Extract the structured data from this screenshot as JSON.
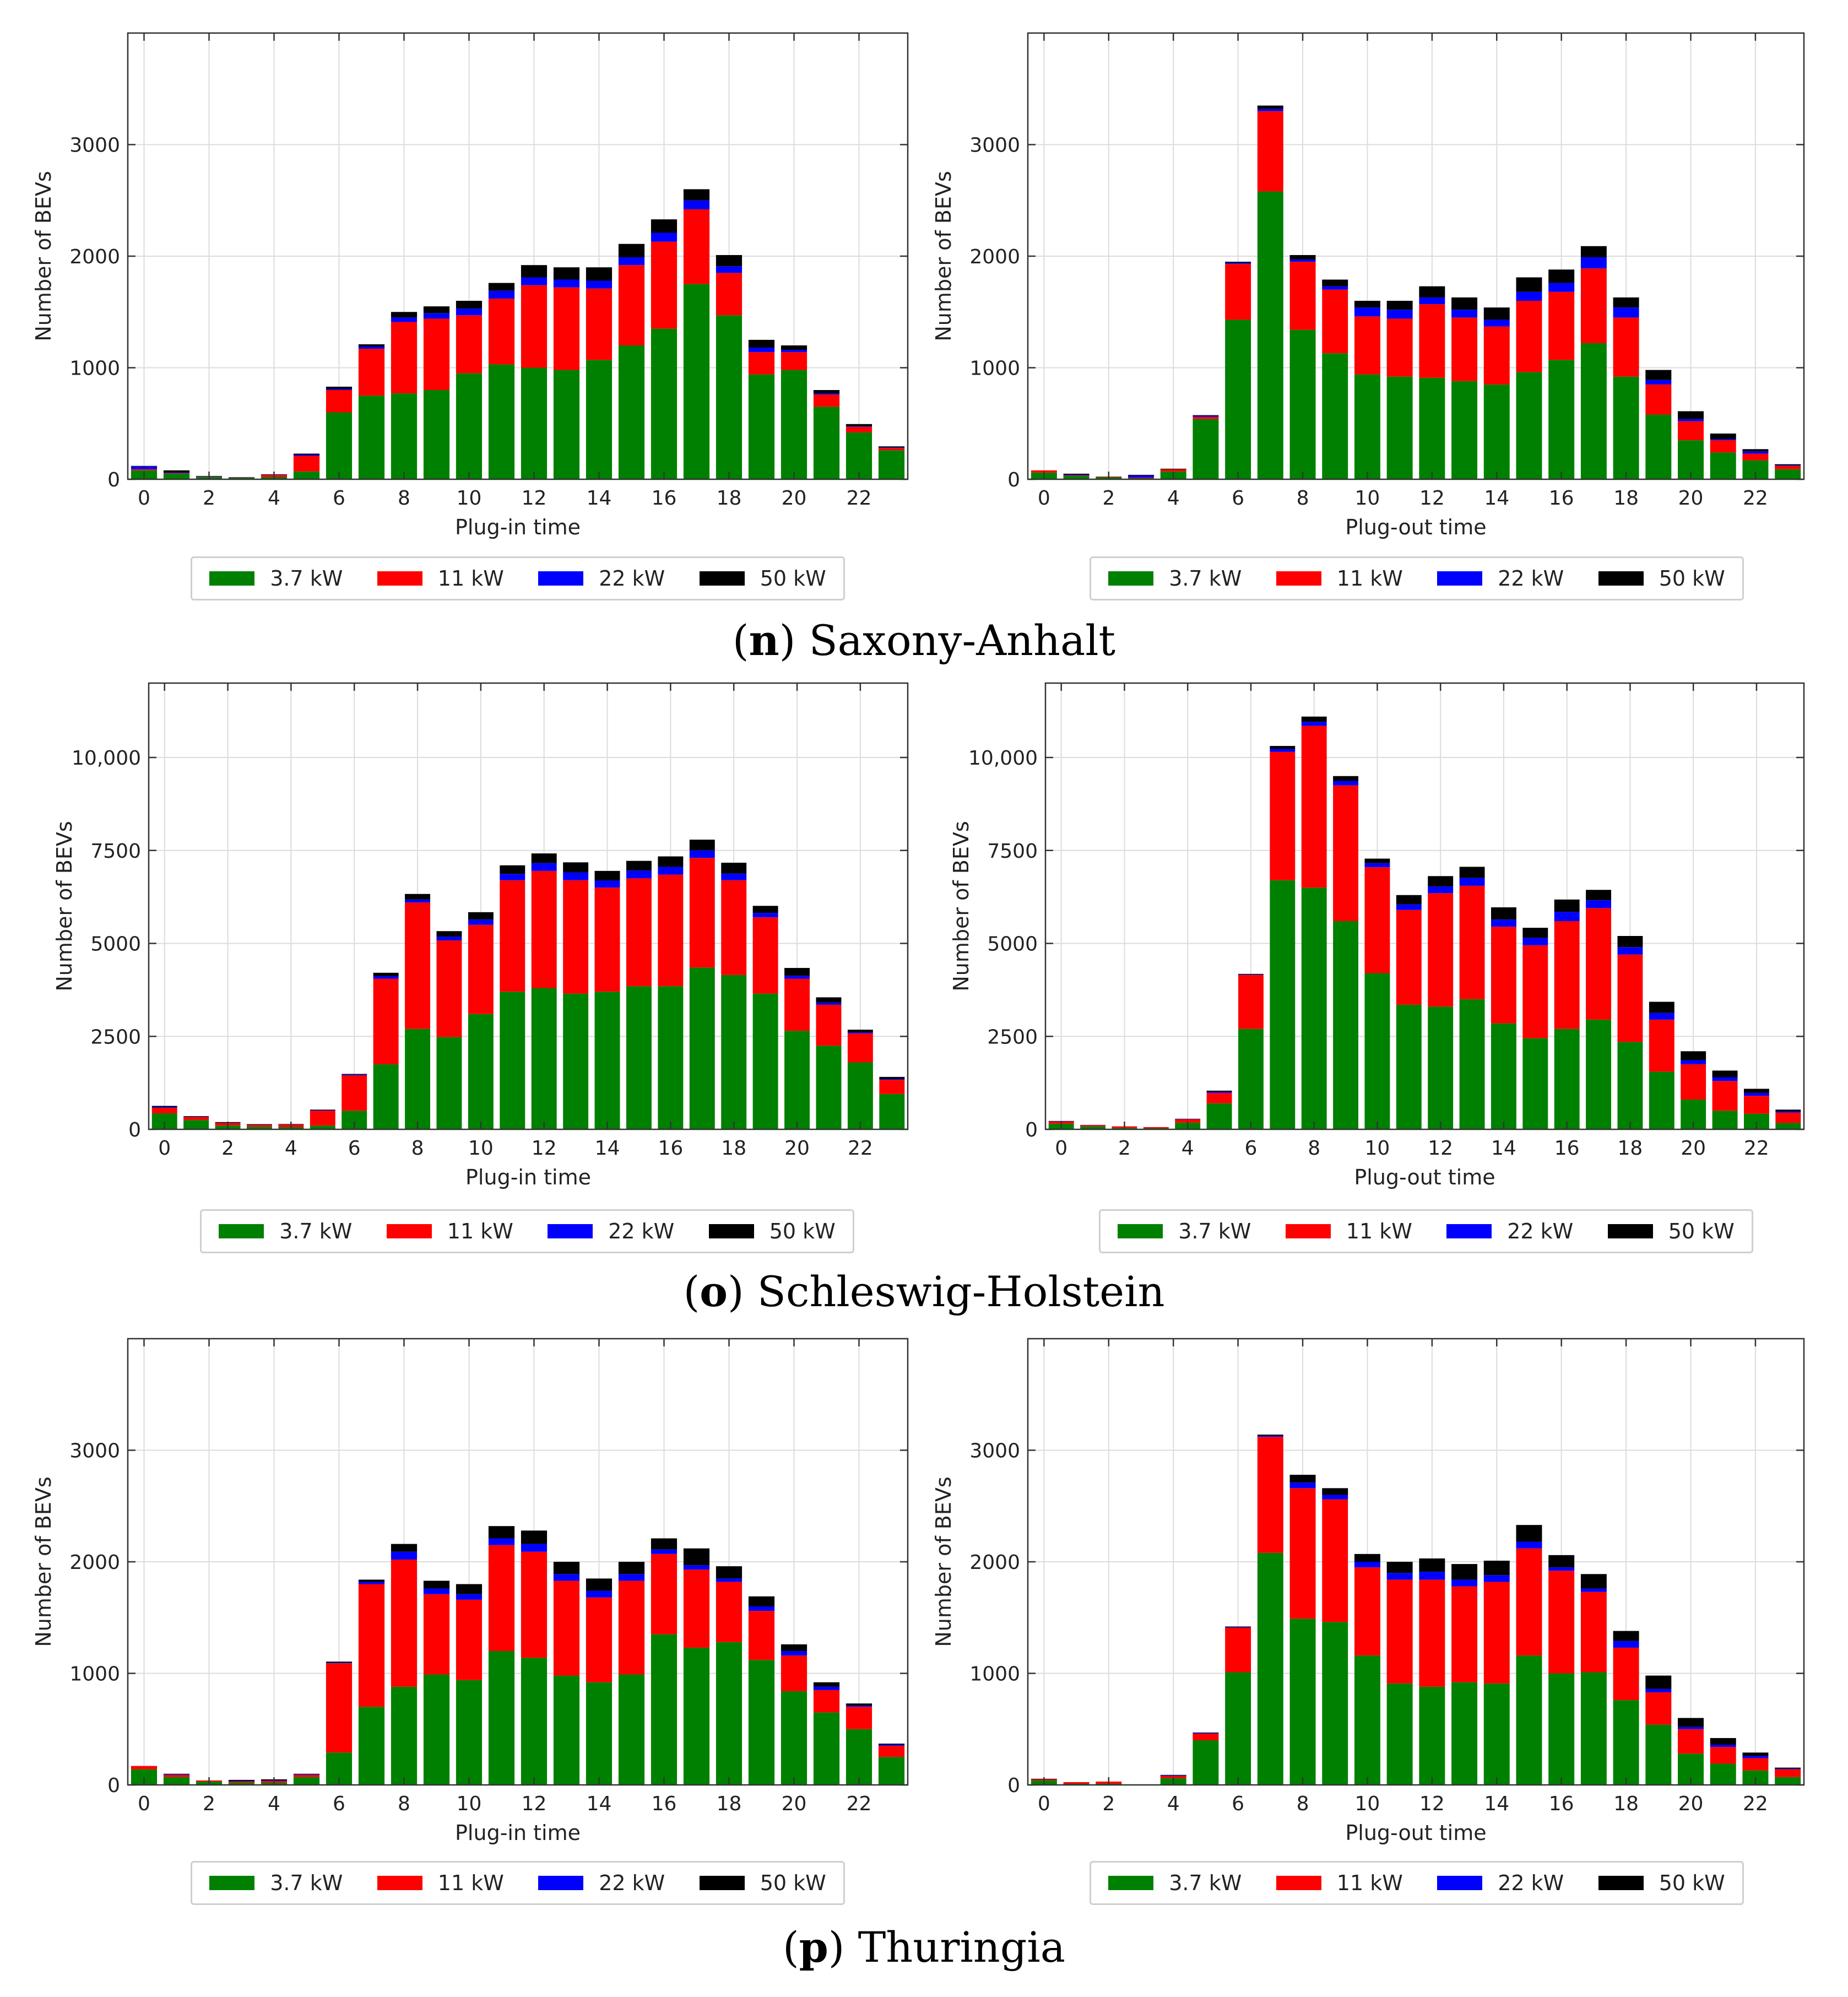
{
  "series": [
    {
      "name": "3.7 kW",
      "color": "#008000"
    },
    {
      "name": "11 kW",
      "color": "#ff0000"
    },
    {
      "name": "22 kW",
      "color": "#0000ff"
    },
    {
      "name": "50 kW",
      "color": "#000000"
    }
  ],
  "captions": [
    {
      "label": "n",
      "region": "Saxony-Anhalt"
    },
    {
      "label": "o",
      "region": "Schleswig-Holstein"
    },
    {
      "label": "p",
      "region": "Thuringia"
    }
  ],
  "chart_data": [
    {
      "type": "bar",
      "stacked": true,
      "region": "Saxony-Anhalt",
      "xlabel": "Plug-in time",
      "ylabel": "Number of BEVs",
      "ylim": [
        0,
        4000
      ],
      "yticks": [
        0,
        1000,
        2000,
        3000
      ],
      "ytick_labels": [
        "0",
        "1000",
        "2000",
        "3000"
      ],
      "xticks": [
        0,
        2,
        4,
        6,
        8,
        10,
        12,
        14,
        16,
        18,
        20,
        22
      ],
      "categories": [
        0,
        1,
        2,
        3,
        4,
        5,
        6,
        7,
        8,
        9,
        10,
        11,
        12,
        13,
        14,
        15,
        16,
        17,
        18,
        19,
        20,
        21,
        22,
        23
      ],
      "series": [
        {
          "name": "3.7 kW",
          "values": [
            80,
            50,
            20,
            15,
            20,
            70,
            600,
            750,
            770,
            800,
            950,
            1030,
            1000,
            980,
            1070,
            1200,
            1350,
            1750,
            1470,
            940,
            980,
            650,
            420,
            260
          ]
        },
        {
          "name": "11 kW",
          "values": [
            10,
            5,
            3,
            3,
            20,
            140,
            200,
            420,
            640,
            640,
            520,
            590,
            740,
            740,
            640,
            720,
            780,
            670,
            380,
            200,
            160,
            110,
            50,
            20
          ]
        },
        {
          "name": "22 kW",
          "values": [
            25,
            5,
            3,
            2,
            2,
            10,
            10,
            20,
            40,
            50,
            60,
            70,
            70,
            70,
            70,
            70,
            80,
            80,
            60,
            40,
            20,
            10,
            5,
            5
          ]
        },
        {
          "name": "50 kW",
          "values": [
            5,
            20,
            4,
            0,
            3,
            10,
            20,
            20,
            50,
            60,
            70,
            70,
            110,
            110,
            120,
            120,
            120,
            100,
            100,
            70,
            40,
            30,
            20,
            10
          ]
        }
      ]
    },
    {
      "type": "bar",
      "stacked": true,
      "region": "Saxony-Anhalt",
      "xlabel": "Plug-out time",
      "ylabel": "Number of BEVs",
      "ylim": [
        0,
        4000
      ],
      "yticks": [
        0,
        1000,
        2000,
        3000
      ],
      "ytick_labels": [
        "0",
        "1000",
        "2000",
        "3000"
      ],
      "xticks": [
        0,
        2,
        4,
        6,
        8,
        10,
        12,
        14,
        16,
        18,
        20,
        22
      ],
      "categories": [
        0,
        1,
        2,
        3,
        4,
        5,
        6,
        7,
        8,
        9,
        10,
        11,
        12,
        13,
        14,
        15,
        16,
        17,
        18,
        19,
        20,
        21,
        22,
        23
      ],
      "series": [
        {
          "name": "3.7 kW",
          "values": [
            60,
            30,
            20,
            10,
            70,
            540,
            1430,
            2580,
            1340,
            1130,
            940,
            920,
            910,
            880,
            850,
            960,
            1070,
            1220,
            920,
            580,
            350,
            240,
            170,
            90
          ]
        },
        {
          "name": "11 kW",
          "values": [
            20,
            5,
            5,
            5,
            20,
            20,
            500,
            720,
            610,
            570,
            520,
            520,
            660,
            570,
            520,
            640,
            610,
            670,
            530,
            270,
            170,
            110,
            60,
            30
          ]
        },
        {
          "name": "22 kW",
          "values": [
            0,
            5,
            0,
            20,
            0,
            10,
            10,
            20,
            20,
            30,
            80,
            80,
            60,
            70,
            60,
            80,
            80,
            100,
            90,
            40,
            20,
            10,
            20,
            5
          ]
        },
        {
          "name": "50 kW",
          "values": [
            0,
            10,
            0,
            5,
            5,
            5,
            10,
            30,
            40,
            60,
            60,
            80,
            100,
            110,
            110,
            130,
            120,
            100,
            90,
            90,
            70,
            50,
            20,
            10
          ]
        }
      ]
    },
    {
      "type": "bar",
      "stacked": true,
      "region": "Schleswig-Holstein",
      "xlabel": "Plug-in time",
      "ylabel": "Number of BEVs",
      "ylim": [
        0,
        12000
      ],
      "yticks": [
        0,
        2500,
        5000,
        7500,
        10000
      ],
      "ytick_labels": [
        "0",
        "2500",
        "5000",
        "7500",
        "10,000"
      ],
      "xticks": [
        0,
        2,
        4,
        6,
        8,
        10,
        12,
        14,
        16,
        18,
        20,
        22
      ],
      "categories": [
        0,
        1,
        2,
        3,
        4,
        5,
        6,
        7,
        8,
        9,
        10,
        11,
        12,
        13,
        14,
        15,
        16,
        17,
        18,
        19,
        20,
        21,
        22,
        23
      ],
      "series": [
        {
          "name": "3.7 kW",
          "values": [
            430,
            250,
            100,
            70,
            60,
            100,
            500,
            1750,
            2700,
            2480,
            3100,
            3700,
            3800,
            3650,
            3700,
            3850,
            3850,
            4350,
            4150,
            3650,
            2650,
            2250,
            1800,
            950
          ]
        },
        {
          "name": "11 kW",
          "values": [
            150,
            80,
            70,
            50,
            70,
            400,
            950,
            2300,
            3400,
            2600,
            2400,
            3000,
            3150,
            3050,
            2800,
            2900,
            3000,
            2950,
            2550,
            2050,
            1400,
            1100,
            780,
            380
          ]
        },
        {
          "name": "22 kW",
          "values": [
            20,
            5,
            5,
            5,
            5,
            10,
            20,
            70,
            80,
            100,
            140,
            170,
            210,
            210,
            190,
            210,
            210,
            200,
            180,
            120,
            80,
            60,
            30,
            20
          ]
        },
        {
          "name": "50 kW",
          "values": [
            30,
            20,
            20,
            15,
            10,
            20,
            20,
            90,
            150,
            150,
            200,
            230,
            260,
            270,
            260,
            260,
            280,
            290,
            290,
            190,
            210,
            140,
            70,
            60
          ]
        }
      ]
    },
    {
      "type": "bar",
      "stacked": true,
      "region": "Schleswig-Holstein",
      "xlabel": "Plug-out time",
      "ylabel": "Number of BEVs",
      "ylim": [
        0,
        12000
      ],
      "yticks": [
        0,
        2500,
        5000,
        7500,
        10000
      ],
      "ytick_labels": [
        "0",
        "2500",
        "5000",
        "7500",
        "10,000"
      ],
      "xticks": [
        0,
        2,
        4,
        6,
        8,
        10,
        12,
        14,
        16,
        18,
        20,
        22
      ],
      "categories": [
        0,
        1,
        2,
        3,
        4,
        5,
        6,
        7,
        8,
        9,
        10,
        11,
        12,
        13,
        14,
        15,
        16,
        17,
        18,
        19,
        20,
        21,
        22,
        23
      ],
      "series": [
        {
          "name": "3.7 kW",
          "values": [
            150,
            80,
            40,
            30,
            180,
            700,
            2700,
            6700,
            6500,
            5600,
            4200,
            3350,
            3300,
            3500,
            2850,
            2450,
            2700,
            2950,
            2350,
            1550,
            800,
            500,
            420,
            170
          ]
        },
        {
          "name": "11 kW",
          "values": [
            60,
            30,
            40,
            30,
            90,
            280,
            1450,
            3450,
            4350,
            3650,
            2850,
            2550,
            3050,
            3050,
            2600,
            2500,
            2900,
            3000,
            2350,
            1400,
            950,
            800,
            480,
            280
          ]
        },
        {
          "name": "22 kW",
          "values": [
            5,
            5,
            0,
            0,
            5,
            30,
            10,
            80,
            110,
            120,
            110,
            150,
            180,
            210,
            190,
            200,
            250,
            210,
            200,
            180,
            110,
            100,
            80,
            30
          ]
        },
        {
          "name": "50 kW",
          "values": [
            10,
            5,
            0,
            0,
            10,
            30,
            20,
            80,
            140,
            130,
            120,
            250,
            280,
            300,
            330,
            270,
            330,
            280,
            300,
            300,
            240,
            180,
            110,
            50
          ]
        }
      ]
    },
    {
      "type": "bar",
      "stacked": true,
      "region": "Thuringia",
      "xlabel": "Plug-in time",
      "ylabel": "Number of BEVs",
      "ylim": [
        0,
        4000
      ],
      "yticks": [
        0,
        1000,
        2000,
        3000
      ],
      "ytick_labels": [
        "0",
        "1000",
        "2000",
        "3000"
      ],
      "xticks": [
        0,
        2,
        4,
        6,
        8,
        10,
        12,
        14,
        16,
        18,
        20,
        22
      ],
      "categories": [
        0,
        1,
        2,
        3,
        4,
        5,
        6,
        7,
        8,
        9,
        10,
        11,
        12,
        13,
        14,
        15,
        16,
        17,
        18,
        19,
        20,
        21,
        22,
        23
      ],
      "series": [
        {
          "name": "3.7 kW",
          "values": [
            140,
            70,
            30,
            20,
            20,
            70,
            290,
            700,
            880,
            990,
            940,
            1200,
            1140,
            980,
            920,
            990,
            1350,
            1230,
            1280,
            1120,
            840,
            650,
            500,
            250
          ]
        },
        {
          "name": "11 kW",
          "values": [
            30,
            20,
            10,
            10,
            15,
            20,
            800,
            1100,
            1140,
            720,
            720,
            950,
            950,
            850,
            760,
            840,
            720,
            700,
            540,
            440,
            320,
            200,
            200,
            100
          ]
        },
        {
          "name": "22 kW",
          "values": [
            0,
            5,
            0,
            5,
            5,
            5,
            5,
            20,
            70,
            50,
            50,
            60,
            70,
            60,
            60,
            60,
            40,
            40,
            30,
            40,
            40,
            30,
            10,
            10
          ]
        },
        {
          "name": "50 kW",
          "values": [
            0,
            5,
            0,
            10,
            10,
            5,
            10,
            20,
            70,
            70,
            90,
            110,
            120,
            110,
            110,
            110,
            100,
            150,
            110,
            90,
            60,
            40,
            20,
            10
          ]
        }
      ]
    },
    {
      "type": "bar",
      "stacked": true,
      "region": "Thuringia",
      "xlabel": "Plug-out time",
      "ylabel": "Number of BEVs",
      "ylim": [
        0,
        4000
      ],
      "yticks": [
        0,
        1000,
        2000,
        3000
      ],
      "ytick_labels": [
        "0",
        "1000",
        "2000",
        "3000"
      ],
      "xticks": [
        0,
        2,
        4,
        6,
        8,
        10,
        12,
        14,
        16,
        18,
        20,
        22
      ],
      "categories": [
        0,
        1,
        2,
        3,
        4,
        5,
        6,
        7,
        8,
        9,
        10,
        11,
        12,
        13,
        14,
        15,
        16,
        17,
        18,
        19,
        20,
        21,
        22,
        23
      ],
      "series": [
        {
          "name": "3.7 kW",
          "values": [
            40,
            10,
            10,
            0,
            60,
            400,
            1010,
            2080,
            1490,
            1460,
            1160,
            910,
            880,
            920,
            910,
            1160,
            1000,
            1010,
            760,
            540,
            280,
            190,
            130,
            70
          ]
        },
        {
          "name": "11 kW",
          "values": [
            10,
            15,
            20,
            0,
            20,
            60,
            400,
            1040,
            1170,
            1100,
            790,
            930,
            960,
            860,
            910,
            960,
            920,
            720,
            470,
            290,
            220,
            150,
            110,
            70
          ]
        },
        {
          "name": "22 kW",
          "values": [
            0,
            0,
            0,
            0,
            5,
            5,
            5,
            10,
            50,
            40,
            50,
            60,
            70,
            60,
            60,
            60,
            30,
            30,
            60,
            30,
            20,
            20,
            20,
            5
          ]
        },
        {
          "name": "50 kW",
          "values": [
            5,
            0,
            0,
            0,
            5,
            5,
            5,
            10,
            70,
            60,
            70,
            100,
            120,
            140,
            130,
            150,
            110,
            130,
            90,
            120,
            80,
            60,
            30,
            10
          ]
        }
      ]
    }
  ]
}
